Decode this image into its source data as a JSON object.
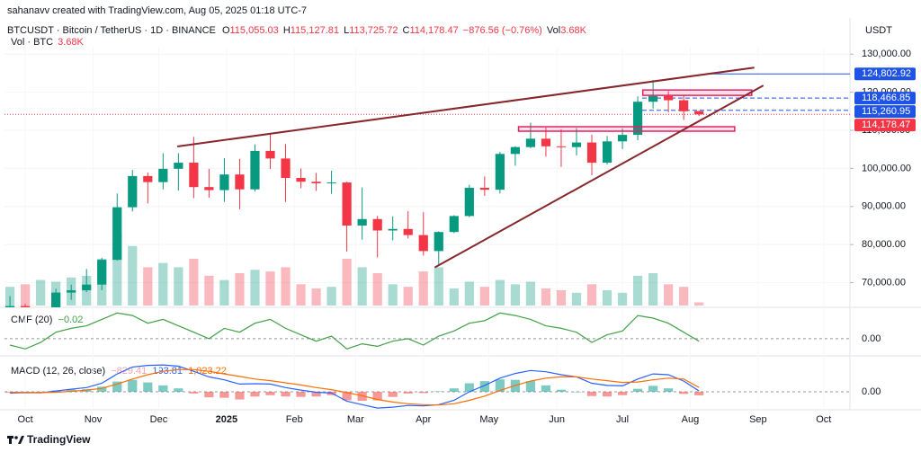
{
  "chart_data": {
    "type": "candlestick",
    "caption": "sahanavv created with TradingView.com, Aug 05, 2025 01:18 UTC-7",
    "symbol": "BTCUSDT · Bitcoin / TetherUS · 1D · BINANCE",
    "ohlc_labels": [
      {
        "prefix": "O",
        "label": "115,055.03"
      },
      {
        "prefix": "H",
        "label": "115,127.81"
      },
      {
        "prefix": "L",
        "label": "113,725.72"
      },
      {
        "prefix": "C",
        "label": "114,178.47"
      }
    ],
    "change_label": "−876.56 (−0.76%)",
    "header_vol_prefix": "Vol",
    "volume_title": "Vol · BTC",
    "volume_label": "3.68K",
    "axis_unit": "USDT",
    "up_color": "#089981",
    "down_color": "#f23645",
    "x": [
      -7,
      0,
      7,
      14,
      21,
      28,
      35,
      42,
      49,
      56,
      63,
      70,
      77,
      84,
      91,
      98,
      105,
      112,
      119,
      126,
      133,
      140,
      147,
      154,
      161,
      168,
      175,
      182,
      189,
      196,
      203,
      210,
      217,
      224,
      231,
      238,
      245,
      252,
      259,
      266,
      273,
      280,
      287,
      294,
      301,
      308
    ],
    "open": [
      63300,
      63900,
      62800,
      62900,
      67400,
      68000,
      69500,
      76000,
      89800,
      98000,
      96400,
      99900,
      101500,
      95100,
      94300,
      98400,
      94500,
      104600,
      102600,
      97500,
      96500,
      96100,
      96300,
      85000,
      86700,
      83700,
      84100,
      82500,
      78300,
      83300,
      87500,
      94900,
      94400,
      103800,
      105600,
      107800,
      105800,
      105600,
      106800,
      101500,
      107100,
      108800,
      117500,
      119000,
      117900,
      115055.03
    ],
    "high": [
      66500,
      64400,
      63400,
      68400,
      69500,
      73600,
      76500,
      93400,
      99600,
      98900,
      104000,
      104000,
      108300,
      99900,
      102700,
      102500,
      106300,
      109300,
      106400,
      100000,
      98800,
      99400,
      96500,
      95000,
      87500,
      87400,
      88800,
      88500,
      83500,
      87700,
      95700,
      97900,
      104300,
      105800,
      112000,
      110700,
      110300,
      110600,
      108900,
      108500,
      110500,
      118900,
      123200,
      120300,
      119300,
      115127.81
    ],
    "low": [
      62700,
      59800,
      58900,
      62500,
      65500,
      67500,
      68000,
      75800,
      88700,
      90800,
      94500,
      94200,
      92200,
      92300,
      91200,
      89300,
      94000,
      99900,
      91200,
      94800,
      94100,
      93300,
      78200,
      81300,
      76600,
      81100,
      81600,
      77100,
      74500,
      83000,
      87200,
      92800,
      93400,
      100700,
      105300,
      103100,
      100400,
      103400,
      98200,
      101000,
      105100,
      107400,
      115700,
      114700,
      112700,
      113725.72
    ],
    "close": [
      63900,
      62800,
      62900,
      67400,
      68000,
      69500,
      76000,
      89800,
      98000,
      96400,
      99900,
      101500,
      95100,
      94300,
      98400,
      94500,
      104600,
      102600,
      97500,
      96500,
      96100,
      96300,
      85000,
      86700,
      83700,
      84100,
      82500,
      78300,
      83300,
      87500,
      94900,
      94400,
      103800,
      105600,
      107800,
      105800,
      105600,
      106800,
      101500,
      107100,
      108800,
      117500,
      119000,
      117900,
      115000,
      114178.47
    ],
    "volume": [
      22,
      25,
      30,
      28,
      33,
      35,
      55,
      85,
      70,
      45,
      50,
      45,
      55,
      35,
      30,
      38,
      42,
      40,
      45,
      25,
      20,
      22,
      55,
      45,
      38,
      25,
      22,
      40,
      45,
      20,
      28,
      22,
      30,
      25,
      28,
      20,
      18,
      15,
      25,
      18,
      15,
      35,
      38,
      25,
      22,
      3.68
    ],
    "volume_ylim": [
      0,
      300
    ],
    "xlim": [
      -9.5,
      377
    ],
    "xticks": [
      {
        "value": 0,
        "label": "Oct"
      },
      {
        "value": 31,
        "label": "Nov"
      },
      {
        "value": 61,
        "label": "Dec"
      },
      {
        "value": 92,
        "label": "2025",
        "emphasis": true
      },
      {
        "value": 123,
        "label": "Feb"
      },
      {
        "value": 151,
        "label": "Mar"
      },
      {
        "value": 182,
        "label": "Apr"
      },
      {
        "value": 212,
        "label": "May"
      },
      {
        "value": 243,
        "label": "Jun"
      },
      {
        "value": 273,
        "label": "Jul"
      },
      {
        "value": 304,
        "label": "Aug"
      },
      {
        "value": 335,
        "label": "Sep"
      },
      {
        "value": 365,
        "label": "Oct"
      }
    ],
    "ylim": [
      64000,
      131000
    ],
    "yticks": [
      {
        "value": 70000,
        "label": "70,000.00"
      },
      {
        "value": 80000,
        "label": "80,000.00"
      },
      {
        "value": 90000,
        "label": "90,000.00"
      },
      {
        "value": 100000,
        "label": "100,000.00"
      },
      {
        "value": 110000,
        "label": "110,000.00"
      },
      {
        "value": 120000,
        "label": "120,000.00"
      },
      {
        "value": 130000,
        "label": "130,000.00"
      }
    ],
    "levels": [
      {
        "value": 124802.92,
        "label": "124,802.92",
        "color": "#1e53e5",
        "style": "solid",
        "start": 310.7
      },
      {
        "value": 118466.85,
        "label": "118,466.85",
        "color": "#1e53e5",
        "style": "dashed",
        "start": 282
      },
      {
        "value": 115260.95,
        "label": "115,260.95",
        "color": "#1e53e5",
        "style": "dashed",
        "start": 282
      },
      {
        "value": 114178.47,
        "label": "114,178.47",
        "color": "#f23645",
        "style": "dotted",
        "start": -9.5
      }
    ],
    "trendlines": [
      {
        "color": "#86272b",
        "x": [
          69.5,
          333.3
        ],
        "y": [
          105765,
          126470
        ]
      },
      {
        "color": "#86272b",
        "x": [
          187.2,
          337.4
        ],
        "y": [
          74000,
          121765
        ]
      }
    ],
    "zones": [
      {
        "color": "#e91e63",
        "x": [
          225.5,
          324.3
        ],
        "y": [
          110941,
          109765
        ]
      },
      {
        "color": "#e91e63",
        "x": [
          282.3,
          332.1
        ],
        "y": [
          120588,
          119176
        ]
      }
    ],
    "cmf": {
      "title": "CMF (20)",
      "label": "−0.02",
      "color": "#43a047",
      "values": [
        -0.05,
        -0.08,
        -0.03,
        0.05,
        0.08,
        0.1,
        0.15,
        0.2,
        0.18,
        0.12,
        0.15,
        0.1,
        0.05,
        0.0,
        0.08,
        0.05,
        0.12,
        0.15,
        0.08,
        0.03,
        -0.02,
        0.02,
        -0.08,
        -0.04,
        -0.06,
        -0.02,
        0.0,
        -0.05,
        0.02,
        0.06,
        0.12,
        0.14,
        0.2,
        0.18,
        0.15,
        0.1,
        0.08,
        0.05,
        -0.03,
        0.03,
        0.06,
        0.18,
        0.16,
        0.12,
        0.05,
        -0.02
      ],
      "ylim": [
        -0.12,
        0.23
      ],
      "yticks": [
        {
          "value": 0,
          "label": "0.00"
        }
      ]
    },
    "macd": {
      "title": "MACD (12, 26, close)",
      "histogram_label": "−829.41",
      "macd_label": "193.81",
      "signal_label": "1,023.22",
      "histogram_up_color": "#26a69a",
      "histogram_down_color": "#ef5350",
      "macd_color": "#2962ff",
      "signal_color": "#ff6d00",
      "histogram": [
        -200,
        -50,
        -50,
        300,
        500,
        600,
        1200,
        2400,
        2800,
        2200,
        1500,
        800,
        -400,
        -1300,
        -1400,
        -1800,
        -1100,
        -800,
        -1100,
        -1200,
        -1100,
        -800,
        -2000,
        -2100,
        -2000,
        -1200,
        -400,
        -300,
        100,
        800,
        2000,
        2500,
        2900,
        2800,
        2500,
        1500,
        500,
        0,
        -1000,
        -1100,
        -800,
        700,
        1400,
        800,
        -500,
        -829.41
      ],
      "macd": [
        -300,
        -200,
        -250,
        200,
        600,
        1000,
        2000,
        4200,
        5800,
        6200,
        6300,
        6000,
        4800,
        3500,
        2800,
        1800,
        1900,
        1800,
        1000,
        400,
        -100,
        -300,
        -2200,
        -3000,
        -3800,
        -3600,
        -3200,
        -3300,
        -3000,
        -2000,
        0,
        1500,
        3200,
        4300,
        5000,
        4700,
        4000,
        3500,
        2000,
        1500,
        1400,
        3000,
        4200,
        4000,
        2500,
        193.81
      ],
      "signal": [
        -100,
        -150,
        -200,
        -100,
        100,
        400,
        800,
        1800,
        3000,
        4000,
        4800,
        5200,
        5200,
        4800,
        4200,
        3600,
        3000,
        2600,
        2100,
        1600,
        1000,
        500,
        -200,
        -900,
        -1800,
        -2400,
        -2800,
        -3000,
        -3100,
        -2800,
        -2000,
        -1000,
        300,
        1500,
        2500,
        3200,
        3500,
        3500,
        3000,
        2600,
        2200,
        2300,
        2800,
        3200,
        3000,
        1023.22
      ],
      "ylim": [
        -4000,
        8000
      ],
      "yticks": [
        {
          "value": 0,
          "label": "0.00"
        }
      ]
    }
  },
  "footer": {
    "brand": "TradingView"
  }
}
